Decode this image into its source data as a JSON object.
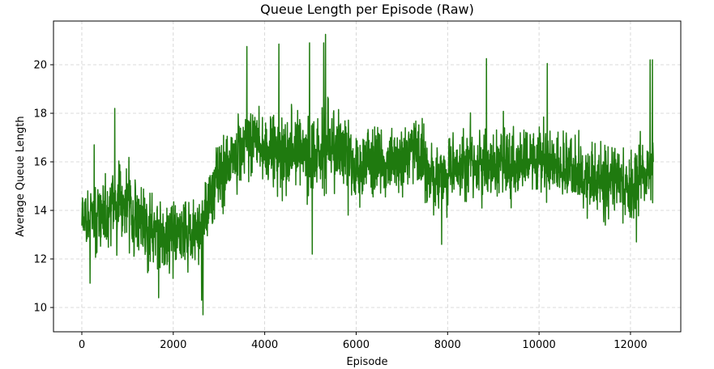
{
  "chart_data": {
    "type": "line",
    "title": "Queue Length per Episode (Raw)",
    "xlabel": "Episode",
    "ylabel": "Average Queue Length",
    "xlim": [
      -620,
      13100
    ],
    "ylim": [
      9.0,
      21.8
    ],
    "xticks": [
      0,
      2000,
      4000,
      6000,
      8000,
      10000,
      12000
    ],
    "yticks": [
      10,
      12,
      14,
      16,
      18,
      20
    ],
    "grid": true,
    "series": [
      {
        "color": "#1f7a0f",
        "x_range": [
          0,
          12500
        ],
        "profile": [
          [
            0,
            14.0
          ],
          [
            300,
            13.5
          ],
          [
            600,
            14.0
          ],
          [
            900,
            14.6
          ],
          [
            1200,
            13.6
          ],
          [
            1500,
            13.2
          ],
          [
            1800,
            12.9
          ],
          [
            2100,
            13.2
          ],
          [
            2400,
            13.0
          ],
          [
            2600,
            13.2
          ],
          [
            2800,
            14.6
          ],
          [
            3000,
            15.4
          ],
          [
            3200,
            15.6
          ],
          [
            3500,
            16.6
          ],
          [
            3800,
            16.9
          ],
          [
            4000,
            16.3
          ],
          [
            4300,
            16.2
          ],
          [
            4700,
            16.4
          ],
          [
            5000,
            16.1
          ],
          [
            5300,
            16.6
          ],
          [
            5600,
            16.6
          ],
          [
            6000,
            15.8
          ],
          [
            6500,
            16.1
          ],
          [
            7000,
            16.0
          ],
          [
            7300,
            16.6
          ],
          [
            7600,
            15.2
          ],
          [
            8000,
            15.6
          ],
          [
            8500,
            15.8
          ],
          [
            9000,
            15.6
          ],
          [
            9500,
            16.0
          ],
          [
            10000,
            16.0
          ],
          [
            10500,
            15.8
          ],
          [
            11000,
            15.4
          ],
          [
            11500,
            15.2
          ],
          [
            12000,
            15.0
          ],
          [
            12300,
            15.4
          ],
          [
            12500,
            15.8
          ]
        ],
        "noise": [
          [
            0,
            1.6
          ],
          [
            2500,
            1.8
          ],
          [
            3000,
            1.6
          ],
          [
            5000,
            2.0
          ],
          [
            6500,
            1.6
          ],
          [
            9000,
            1.6
          ],
          [
            12500,
            1.8
          ]
        ],
        "extremes": [
          [
            5330,
            21.25
          ],
          [
            5290,
            20.9
          ],
          [
            4980,
            20.9
          ],
          [
            4310,
            20.85
          ],
          [
            3610,
            20.75
          ],
          [
            2650,
            9.7
          ],
          [
            2620,
            10.3
          ],
          [
            1680,
            10.4
          ],
          [
            5040,
            12.2
          ],
          [
            7870,
            12.6
          ],
          [
            12430,
            20.2
          ],
          [
            12480,
            20.2
          ],
          [
            720,
            18.2
          ],
          [
            8850,
            20.25
          ],
          [
            10180,
            20.05
          ],
          [
            180,
            11.0
          ],
          [
            12130,
            12.7
          ],
          [
            270,
            16.7
          ]
        ]
      }
    ]
  }
}
